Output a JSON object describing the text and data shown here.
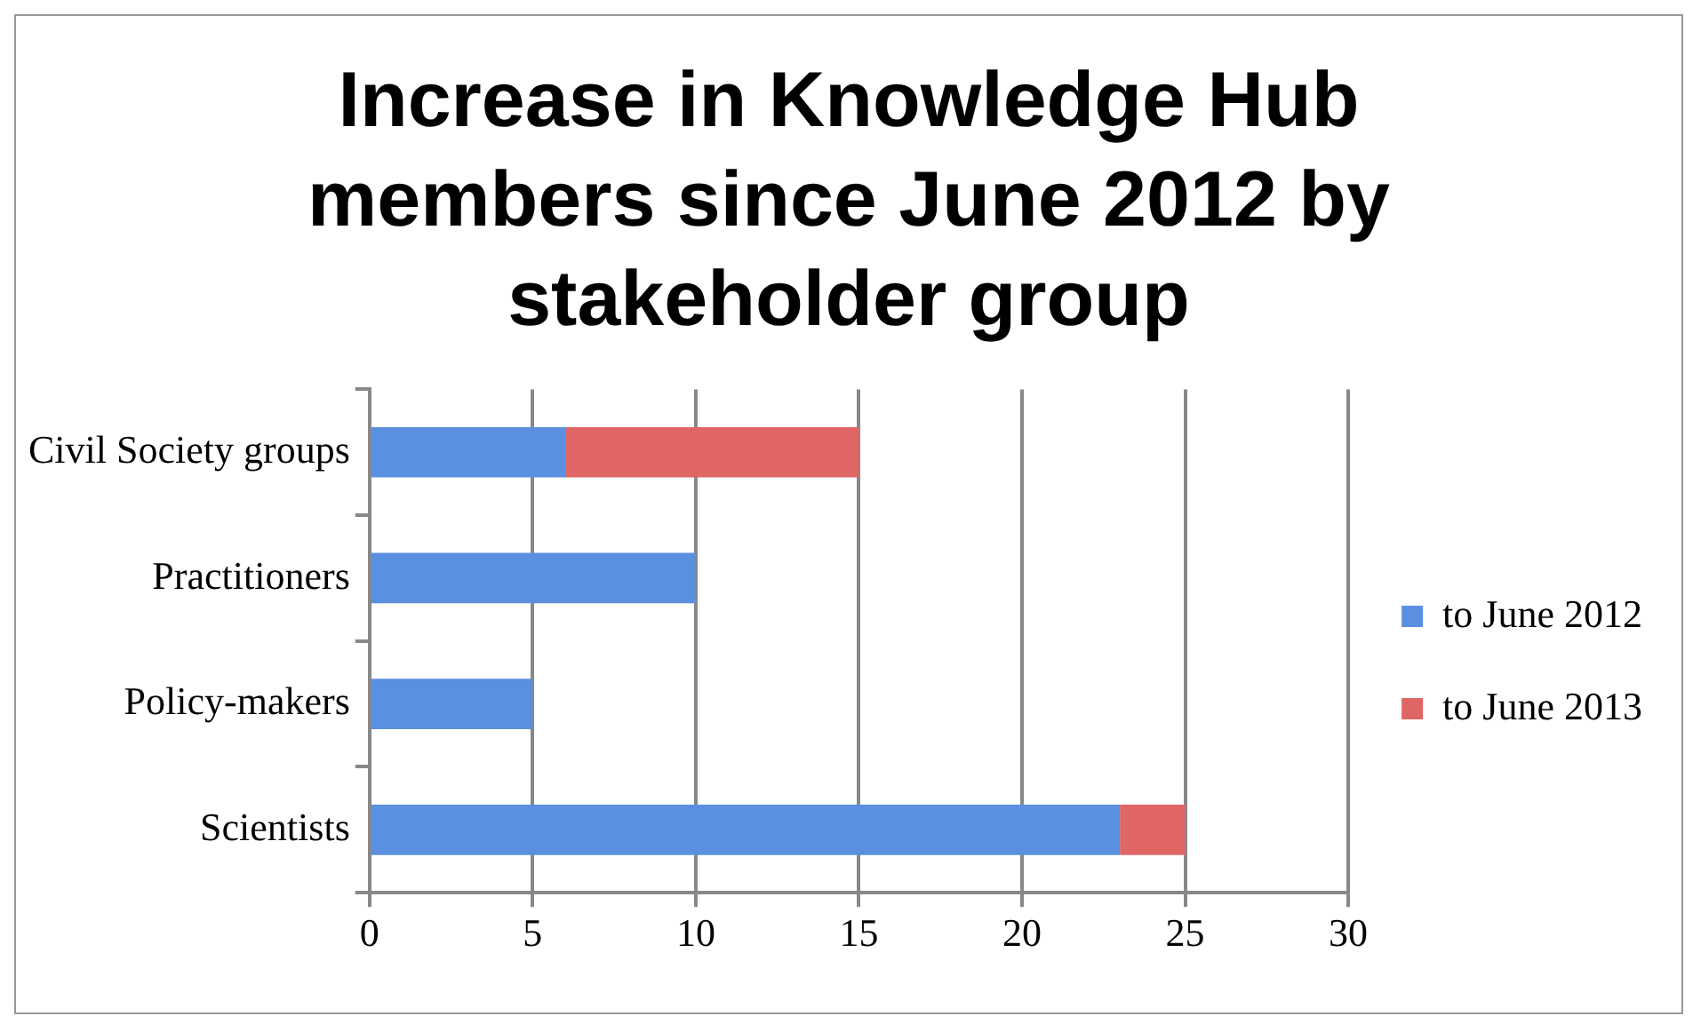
{
  "chart_data": {
    "type": "bar",
    "orientation": "horizontal",
    "stacked": true,
    "title": "Increase in Knowledge Hub members since June 2012 by stakeholder group",
    "categories": [
      "Civil Society groups",
      "Practitioners",
      "Policy-makers",
      "Scientists"
    ],
    "series": [
      {
        "name": "to June 2012",
        "color": "#5b8fe0",
        "values": [
          6,
          10,
          5,
          23
        ]
      },
      {
        "name": "to June 2013",
        "color": "#e06666",
        "values": [
          9,
          0,
          0,
          2
        ]
      }
    ],
    "xlim": [
      0,
      30
    ],
    "xticks": [
      0,
      5,
      10,
      15,
      20,
      25,
      30
    ],
    "grid": "x",
    "legend": "right"
  }
}
